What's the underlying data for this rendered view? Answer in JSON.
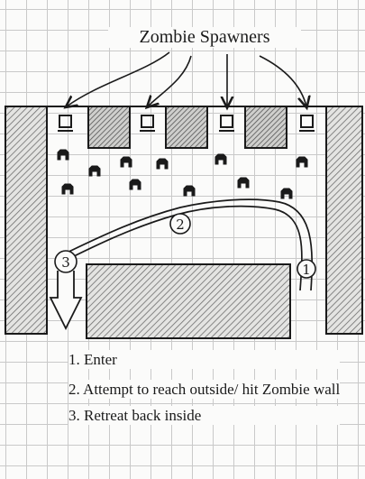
{
  "title": "Zombie Spawners",
  "markers": {
    "enter": "1",
    "attempt": "2",
    "retreat": "3"
  },
  "steps": [
    "1. Enter",
    "2. Attempt to reach outside/ hit Zombie wall",
    "3. Retreat back inside"
  ],
  "icons": {
    "spawner": "spawner-icon",
    "zombie": "zombie-icon",
    "arrow": "arrow-icon"
  },
  "colors": {
    "ink": "#1a1a1a",
    "grid": "#c9c9c9",
    "hatch": "#6e6e6e",
    "paper": "#fbfbfa"
  }
}
